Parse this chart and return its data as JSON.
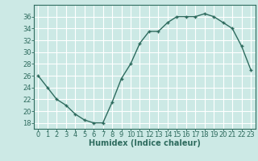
{
  "x": [
    0,
    1,
    2,
    3,
    4,
    5,
    6,
    7,
    8,
    9,
    10,
    11,
    12,
    13,
    14,
    15,
    16,
    17,
    18,
    19,
    20,
    21,
    22,
    23
  ],
  "y": [
    26,
    24,
    22,
    21,
    19.5,
    18.5,
    18,
    18,
    21.5,
    25.5,
    28,
    31.5,
    33.5,
    33.5,
    35,
    36,
    36,
    36,
    36.5,
    36,
    35,
    34,
    31,
    27
  ],
  "line_color": "#2e6b5e",
  "marker": "+",
  "marker_color": "#2e6b5e",
  "bg_color": "#cce9e5",
  "grid_color": "#ffffff",
  "tick_label_color": "#2e6b5e",
  "xlabel": "Humidex (Indice chaleur)",
  "xlabel_color": "#2e6b5e",
  "ylim": [
    17,
    38
  ],
  "xlim": [
    -0.5,
    23.5
  ],
  "yticks": [
    18,
    20,
    22,
    24,
    26,
    28,
    30,
    32,
    34,
    36
  ],
  "xticks": [
    0,
    1,
    2,
    3,
    4,
    5,
    6,
    7,
    8,
    9,
    10,
    11,
    12,
    13,
    14,
    15,
    16,
    17,
    18,
    19,
    20,
    21,
    22,
    23
  ],
  "xtick_labels": [
    "0",
    "1",
    "2",
    "3",
    "4",
    "5",
    "6",
    "7",
    "8",
    "9",
    "10",
    "11",
    "12",
    "13",
    "14",
    "15",
    "16",
    "17",
    "18",
    "19",
    "20",
    "21",
    "22",
    "23"
  ],
  "linewidth": 1.0,
  "marker_size": 3.5,
  "tick_fontsize": 6,
  "xlabel_fontsize": 7
}
